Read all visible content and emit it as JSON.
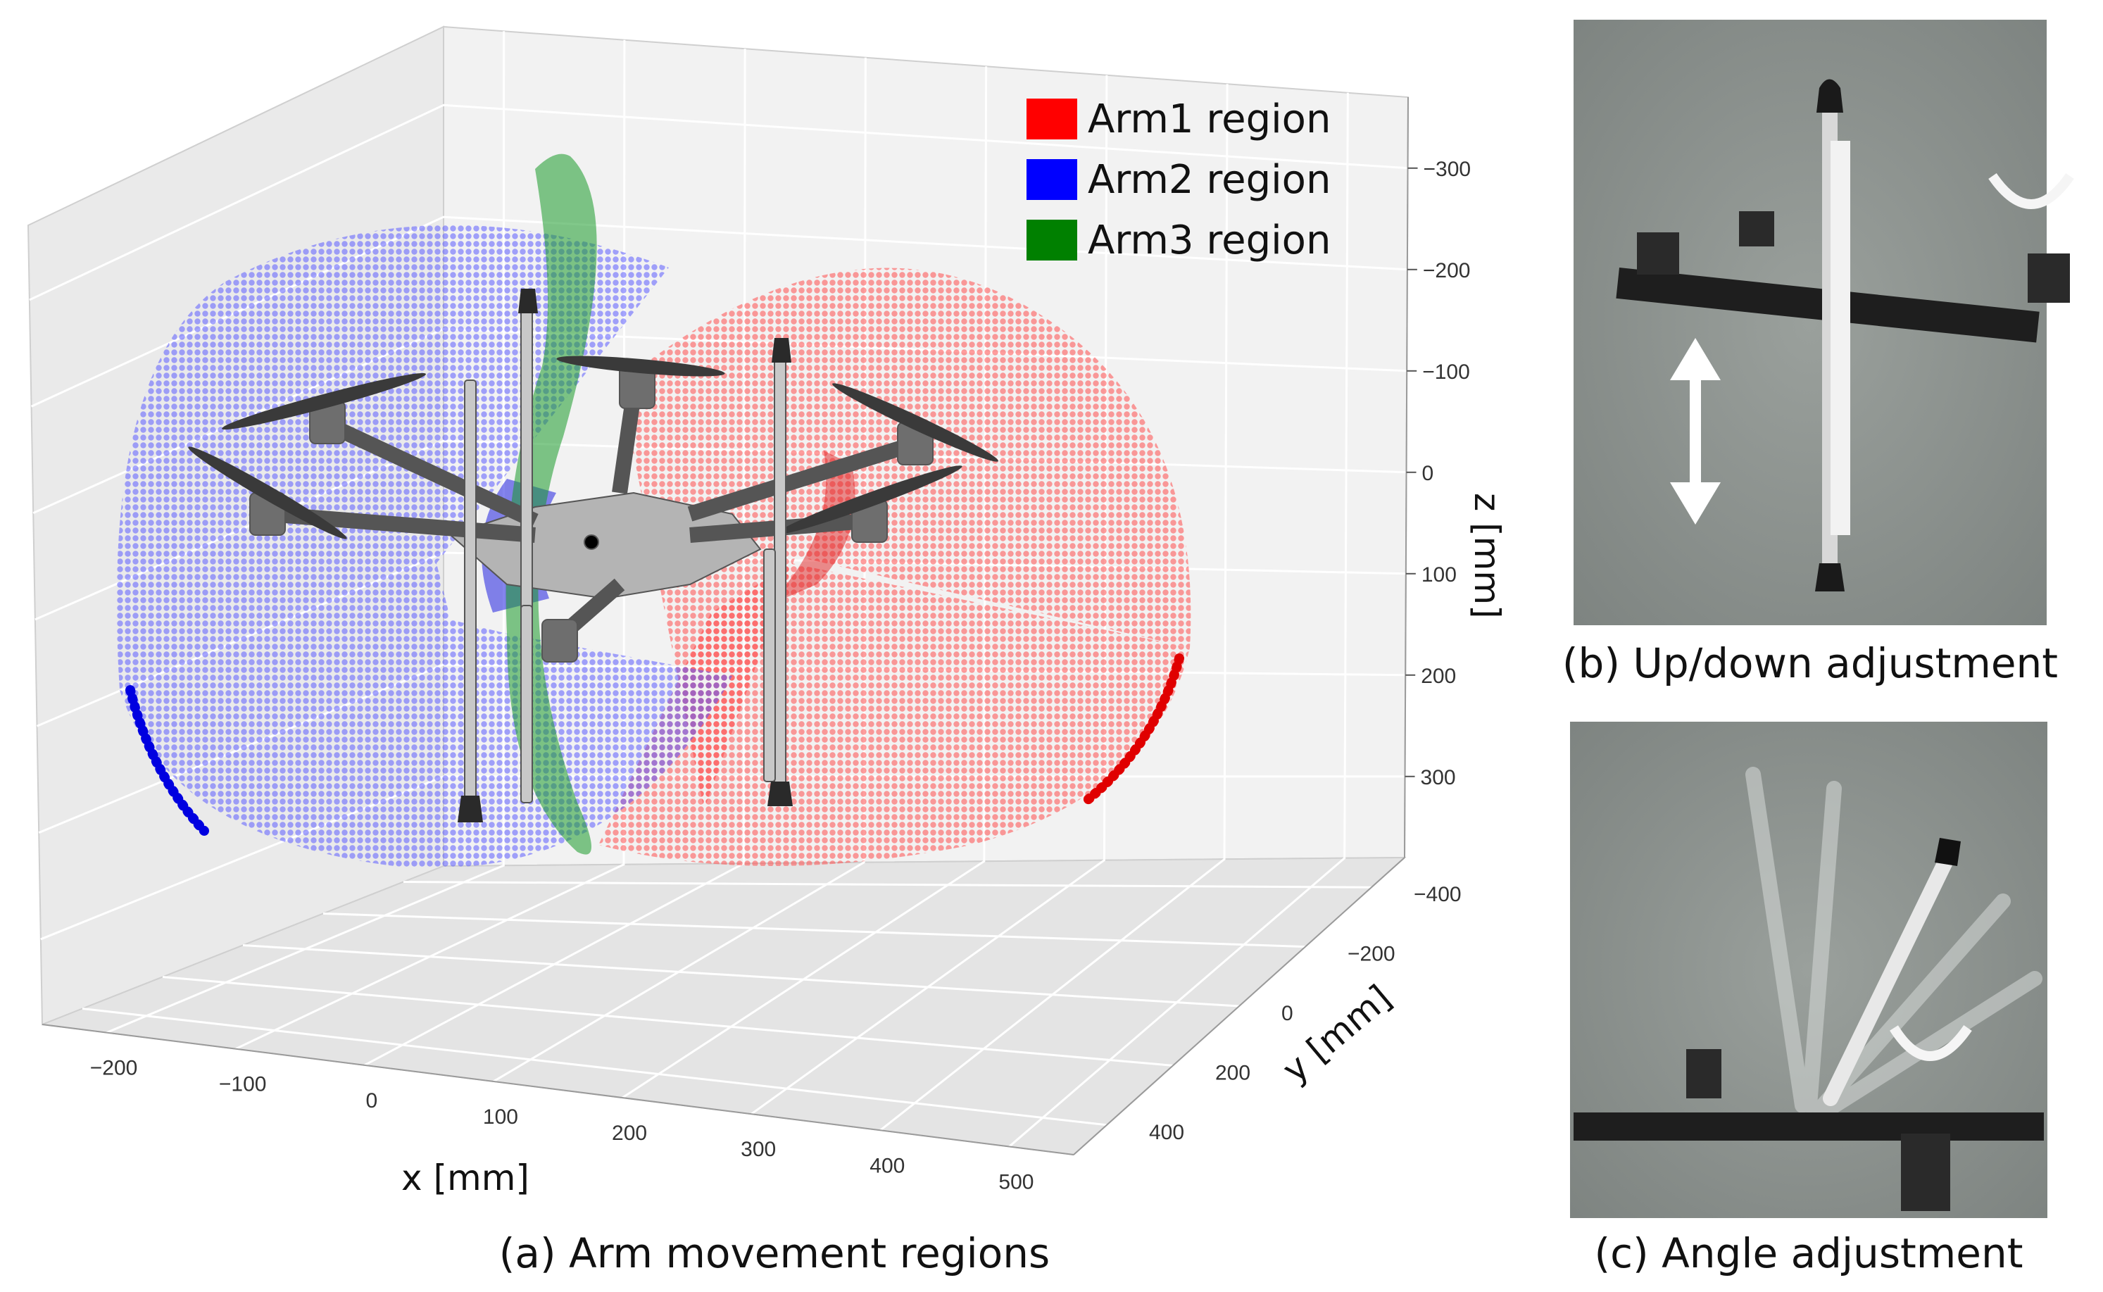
{
  "chart_data": {
    "type": "scatter",
    "projection": "3d",
    "xlabel": "x [mm]",
    "ylabel": "y [mm]",
    "zlabel": "z [mm]",
    "xlim": [
      -250,
      550
    ],
    "ylim": [
      -450,
      450
    ],
    "zlim": [
      350,
      -350
    ],
    "x_ticks": [
      "−200",
      "−100",
      "0",
      "100",
      "200",
      "300",
      "400",
      "500"
    ],
    "y_ticks": [
      "−400",
      "−200",
      "0",
      "200",
      "400"
    ],
    "z_ticks": [
      "−300",
      "−200",
      "−100",
      "0",
      "100",
      "200",
      "300"
    ],
    "grid": true,
    "legend_position": "top-right",
    "series": [
      {
        "name": "Arm1 region",
        "color": "#ff0000",
        "arc_endpoints_mm": [
          [
            500,
            0,
            200
          ],
          [
            420,
            0,
            330
          ]
        ]
      },
      {
        "name": "Arm2 region",
        "color": "#0000ff",
        "arc_endpoints_mm": [
          [
            -230,
            0,
            230
          ],
          [
            -180,
            0,
            360
          ]
        ]
      },
      {
        "name": "Arm3 region",
        "color": "#008000",
        "arc_endpoints_mm": [
          [
            100,
            -300,
            -320
          ],
          [
            100,
            300,
            320
          ]
        ]
      }
    ]
  },
  "captions": {
    "a": "(a) Arm movement regions",
    "b": "(b) Up/down adjustment",
    "c": "(c) Angle adjustment"
  },
  "photos": {
    "background_color": "#8b908d",
    "arrow_color": "#ffffff"
  }
}
